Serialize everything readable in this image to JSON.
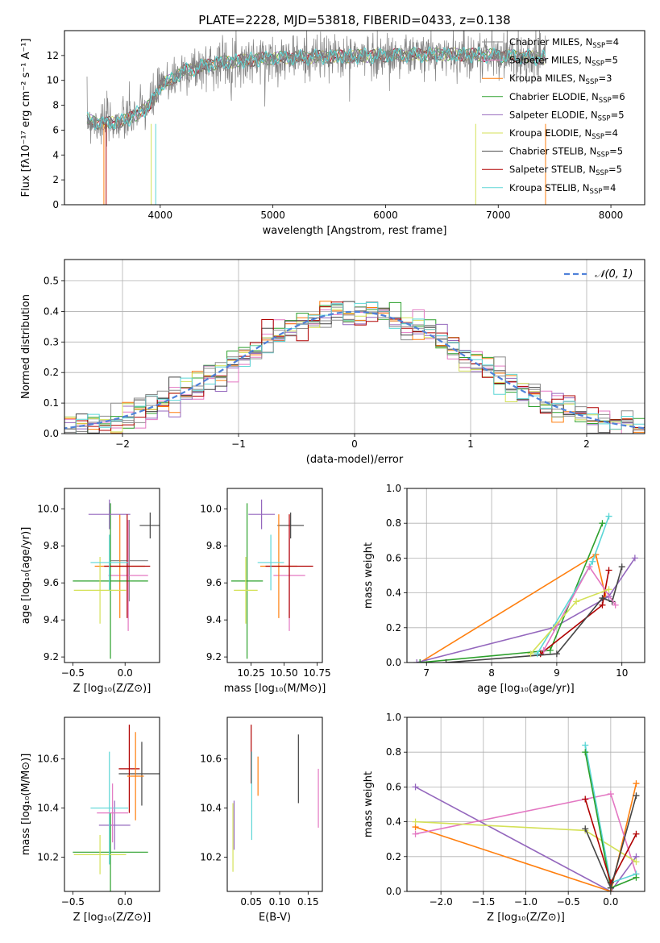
{
  "figure_title": "PLATE=2228, MJD=53818, FIBERID=0433, z=0.138",
  "colors": {
    "data": "#808080",
    "series": [
      "#8c8c8c",
      "#e377c2",
      "#ff7f0e",
      "#2ca02c",
      "#9467bd",
      "#d4e157",
      "#444444",
      "#b00000",
      "#5bd6d6"
    ]
  },
  "legend_labels": [
    {
      "base": "Chabrier MILES, N",
      "sub": "SSP",
      "tail": "=4"
    },
    {
      "base": "Salpeter MILES, N",
      "sub": "SSP",
      "tail": "=5"
    },
    {
      "base": "Kroupa MILES, N",
      "sub": "SSP",
      "tail": "=3"
    },
    {
      "base": "Chabrier ELODIE, N",
      "sub": "SSP",
      "tail": "=6"
    },
    {
      "base": "Salpeter ELODIE, N",
      "sub": "SSP",
      "tail": "=5"
    },
    {
      "base": "Kroupa ELODIE, N",
      "sub": "SSP",
      "tail": "=4"
    },
    {
      "base": "Chabrier STELIB, N",
      "sub": "SSP",
      "tail": "=5"
    },
    {
      "base": "Salpeter STELIB, N",
      "sub": "SSP",
      "tail": "=5"
    },
    {
      "base": "Kroupa STELIB, N",
      "sub": "SSP",
      "tail": "=4"
    }
  ],
  "chart_data": [
    {
      "id": "spectrum",
      "type": "line",
      "xlabel": "wavelength [Angstrom, rest frame]",
      "ylabel": "Flux [fλ10⁻¹⁷ erg cm⁻² s⁻¹ A⁻¹]",
      "xlim": [
        3150,
        8300
      ],
      "ylim": [
        0,
        14
      ],
      "xticks": [
        "4000",
        "5000",
        "6000",
        "7000",
        "8000"
      ],
      "yticks": [
        "0",
        "2",
        "4",
        "6",
        "8",
        "10",
        "12"
      ],
      "xrange_data": [
        3350,
        7420
      ],
      "continuum": {
        "x": [
          3350,
          3500,
          3700,
          3900,
          4000,
          4200,
          4500,
          5000,
          5500,
          6000,
          6500,
          7000,
          7420
        ],
        "y": [
          6.8,
          6.5,
          6.8,
          7.9,
          9.5,
          10.7,
          11.4,
          11.8,
          11.9,
          12.0,
          12.1,
          12.0,
          11.8
        ]
      },
      "legend_position": "upper right",
      "grid": false
    },
    {
      "id": "residuals",
      "type": "histogram",
      "xlabel": "(data-model)/error",
      "ylabel": "Normed distribution",
      "xlim": [
        -2.5,
        2.5
      ],
      "ylim": [
        0,
        0.57
      ],
      "xticks": [
        "−2",
        "−1",
        "0",
        "1",
        "2"
      ],
      "yticks": [
        "0.0",
        "0.1",
        "0.2",
        "0.3",
        "0.4",
        "0.5"
      ],
      "reference_curve": "N(0,1)",
      "legend": "𝒩(0, 1)",
      "legend_position": "upper right",
      "grid": true
    },
    {
      "id": "age_vs_Z",
      "type": "scatter",
      "xlabel": "Z [log₁₀(Z/Z⊙)]",
      "ylabel": "age  [log₁₀(age/yr)]",
      "xlim": [
        -0.58,
        0.33
      ],
      "ylim": [
        9.17,
        10.11
      ],
      "xticks": [
        "−0.5",
        "0.0"
      ],
      "yticks": [
        "9.2",
        "9.4",
        "9.6",
        "9.8",
        "10.0"
      ],
      "grid": false,
      "crosses": [
        {
          "x": 0.04,
          "y": 9.72,
          "xerr": 0.18,
          "yerr": 0.22,
          "color": 0
        },
        {
          "x": 0.03,
          "y": 9.64,
          "xerr": 0.19,
          "yerr": 0.3,
          "color": 1
        },
        {
          "x": -0.05,
          "y": 9.69,
          "xerr": 0.24,
          "yerr": 0.28,
          "color": 2
        },
        {
          "x": -0.14,
          "y": 9.61,
          "xerr": 0.36,
          "yerr": 0.42,
          "color": 3
        },
        {
          "x": -0.15,
          "y": 9.97,
          "xerr": 0.2,
          "yerr": 0.08,
          "color": 4
        },
        {
          "x": -0.24,
          "y": 9.56,
          "xerr": 0.25,
          "yerr": 0.18,
          "color": 5
        },
        {
          "x": 0.24,
          "y": 9.91,
          "xerr": 0.1,
          "yerr": 0.07,
          "color": 6
        },
        {
          "x": 0.02,
          "y": 9.69,
          "xerr": 0.22,
          "yerr": 0.28,
          "color": 7
        },
        {
          "x": -0.15,
          "y": 9.71,
          "xerr": 0.18,
          "yerr": 0.15,
          "color": 8
        },
        {
          "x": -0.12,
          "y": 9.68,
          "xerr": 0.15,
          "yerr": 0.15,
          "color": 9
        }
      ]
    },
    {
      "id": "age_vs_mass",
      "type": "scatter",
      "xlabel": "mass [log₁₀(M/M⊙)]",
      "ylabel": "",
      "xlim": [
        10.07,
        10.79
      ],
      "ylim": [
        9.17,
        10.11
      ],
      "xticks": [
        "10.25",
        "10.50",
        "10.75"
      ],
      "yticks": [
        "9.2",
        "9.4",
        "9.6",
        "9.8",
        "10.0"
      ],
      "grid": false,
      "crosses": [
        {
          "x": 10.55,
          "y": 9.91,
          "xerr": 0.1,
          "yerr": 0.07,
          "color": 6
        },
        {
          "x": 10.54,
          "y": 9.64,
          "xerr": 0.12,
          "yerr": 0.3,
          "color": 1
        },
        {
          "x": 10.46,
          "y": 9.69,
          "xerr": 0.14,
          "yerr": 0.28,
          "color": 2
        },
        {
          "x": 10.22,
          "y": 9.61,
          "xerr": 0.12,
          "yerr": 0.42,
          "color": 3
        },
        {
          "x": 10.33,
          "y": 9.97,
          "xerr": 0.1,
          "yerr": 0.08,
          "color": 4
        },
        {
          "x": 10.21,
          "y": 9.56,
          "xerr": 0.09,
          "yerr": 0.18,
          "color": 5
        },
        {
          "x": 10.54,
          "y": 9.69,
          "xerr": 0.18,
          "yerr": 0.28,
          "color": 7
        },
        {
          "x": 10.4,
          "y": 9.71,
          "xerr": 0.1,
          "yerr": 0.15,
          "color": 8
        },
        {
          "x": 10.46,
          "y": 9.68,
          "xerr": 0.08,
          "yerr": 0.15,
          "color": 9
        }
      ]
    },
    {
      "id": "weight_vs_age",
      "type": "line",
      "xlabel": "age  [log₁₀(age/yr)]",
      "ylabel": "mass weight",
      "xlim": [
        6.7,
        10.35
      ],
      "ylim": [
        0,
        1
      ],
      "xticks": [
        "7",
        "8",
        "9",
        "10"
      ],
      "yticks": [
        "0.0",
        "0.2",
        "0.4",
        "0.6",
        "0.8",
        "1.0"
      ],
      "grid": true,
      "series": [
        {
          "color": 2,
          "x": [
            6.9,
            9.6,
            9.75
          ],
          "y": [
            0.0,
            0.62,
            0.38
          ]
        },
        {
          "color": 4,
          "x": [
            6.85,
            8.95,
            9.8,
            10.2
          ],
          "y": [
            0.0,
            0.2,
            0.38,
            0.6
          ]
        },
        {
          "color": 3,
          "x": [
            6.9,
            8.9,
            9.7
          ],
          "y": [
            0.0,
            0.07,
            0.8
          ]
        },
        {
          "color": 7,
          "x": [
            8.75,
            9.7,
            9.8
          ],
          "y": [
            0.05,
            0.33,
            0.53
          ]
        },
        {
          "color": 6,
          "x": [
            7.3,
            9.0,
            9.7,
            9.85,
            10.0
          ],
          "y": [
            0.0,
            0.05,
            0.37,
            0.35,
            0.55
          ]
        },
        {
          "color": 8,
          "x": [
            8.7,
            9.55,
            9.8
          ],
          "y": [
            0.05,
            0.58,
            0.84
          ]
        },
        {
          "color": 1,
          "x": [
            8.8,
            9.5,
            9.9
          ],
          "y": [
            0.07,
            0.55,
            0.33
          ]
        },
        {
          "color": 5,
          "x": [
            8.6,
            9.3,
            9.8
          ],
          "y": [
            0.05,
            0.35,
            0.42
          ]
        },
        {
          "color": 9,
          "x": [
            8.9,
            9.6,
            9.95
          ],
          "y": [
            0.03,
            0.52,
            0.1
          ]
        }
      ]
    },
    {
      "id": "mass_vs_Z",
      "type": "scatter",
      "xlabel": "Z [log₁₀(Z/Z⊙)]",
      "ylabel": "mass [log₁₀(M/M⊙)]",
      "xlim": [
        -0.58,
        0.33
      ],
      "ylim": [
        10.06,
        10.77
      ],
      "xticks": [
        "−0.5",
        "0.0"
      ],
      "yticks": [
        "10.2",
        "10.4",
        "10.6"
      ],
      "grid": false,
      "crosses": [
        {
          "x": 0.16,
          "y": 10.54,
          "xerr": 0.22,
          "yerr": 0.13,
          "color": 6
        },
        {
          "x": 0.04,
          "y": 10.56,
          "xerr": 0.1,
          "yerr": 0.18,
          "color": 7
        },
        {
          "x": 0.1,
          "y": 10.53,
          "xerr": 0.08,
          "yerr": 0.18,
          "color": 2
        },
        {
          "x": -0.14,
          "y": 10.22,
          "xerr": 0.36,
          "yerr": 0.16,
          "color": 3
        },
        {
          "x": -0.1,
          "y": 10.33,
          "xerr": 0.15,
          "yerr": 0.1,
          "color": 4
        },
        {
          "x": -0.24,
          "y": 10.21,
          "xerr": 0.25,
          "yerr": 0.08,
          "color": 5
        },
        {
          "x": -0.2,
          "y": 10.46,
          "xerr": 0.2,
          "yerr": 0.12,
          "color": 9
        },
        {
          "x": -0.15,
          "y": 10.4,
          "xerr": 0.18,
          "yerr": 0.23,
          "color": 8
        },
        {
          "x": -0.12,
          "y": 10.38,
          "xerr": 0.15,
          "yerr": 0.12,
          "color": 1
        }
      ]
    },
    {
      "id": "mass_vs_EBV",
      "type": "scatter",
      "xlabel": "E(B-V)",
      "ylabel": "",
      "xlim": [
        0.008,
        0.175
      ],
      "ylim": [
        10.06,
        10.77
      ],
      "xticks": [
        "0.05",
        "0.10",
        "0.15"
      ],
      "yticks": [
        "10.2",
        "10.4",
        "10.6"
      ],
      "grid": false,
      "crosses": [
        {
          "x": 0.018,
          "y": 10.28,
          "yerr": 0.14,
          "color": 5
        },
        {
          "x": 0.02,
          "y": 10.33,
          "yerr": 0.1,
          "color": 4
        },
        {
          "x": 0.05,
          "y": 10.62,
          "yerr": 0.12,
          "color": 7
        },
        {
          "x": 0.051,
          "y": 10.45,
          "yerr": 0.18,
          "color": 8
        },
        {
          "x": 0.062,
          "y": 10.53,
          "yerr": 0.08,
          "color": 2
        },
        {
          "x": 0.108,
          "y": 10.44,
          "yerr": 0.14,
          "color": 9
        },
        {
          "x": 0.133,
          "y": 10.56,
          "yerr": 0.14,
          "color": 6
        },
        {
          "x": 0.168,
          "y": 10.44,
          "yerr": 0.12,
          "color": 1
        }
      ]
    },
    {
      "id": "weight_vs_Z",
      "type": "line",
      "xlabel": "Z [log₁₀(Z/Z⊙)]",
      "ylabel": "mass weight",
      "xlim": [
        -2.4,
        0.4
      ],
      "ylim": [
        0,
        1
      ],
      "xticks": [
        "−2.0",
        "−1.5",
        "−1.0",
        "−0.5",
        "0.0"
      ],
      "yticks": [
        "0.0",
        "0.2",
        "0.4",
        "0.6",
        "0.8",
        "1.0"
      ],
      "grid": true,
      "series": [
        {
          "color": 4,
          "x": [
            -2.3,
            0.0,
            0.3
          ],
          "y": [
            0.6,
            0.0,
            0.2
          ]
        },
        {
          "color": 2,
          "x": [
            -2.3,
            0.0,
            0.3
          ],
          "y": [
            0.37,
            0.0,
            0.62
          ]
        },
        {
          "color": 1,
          "x": [
            -2.3,
            0.0,
            0.3
          ],
          "y": [
            0.33,
            0.56,
            0.1
          ]
        },
        {
          "color": 5,
          "x": [
            -2.3,
            -0.3,
            0.3
          ],
          "y": [
            0.4,
            0.35,
            0.17
          ]
        },
        {
          "color": 9,
          "x": [
            -2.3,
            -0.3,
            0.0,
            0.3
          ],
          "y": [
            0.38,
            0.1,
            0.52,
            0.0
          ]
        },
        {
          "color": 8,
          "x": [
            -0.3,
            0.0,
            0.3
          ],
          "y": [
            0.84,
            0.05,
            0.1
          ]
        },
        {
          "color": 3,
          "x": [
            -0.3,
            0.0,
            0.3
          ],
          "y": [
            0.8,
            0.02,
            0.08
          ]
        },
        {
          "color": 7,
          "x": [
            -0.3,
            0.0,
            0.3
          ],
          "y": [
            0.53,
            0.05,
            0.33
          ]
        },
        {
          "color": 6,
          "x": [
            -0.3,
            0.0,
            0.3
          ],
          "y": [
            0.36,
            0.02,
            0.55
          ]
        }
      ]
    }
  ]
}
